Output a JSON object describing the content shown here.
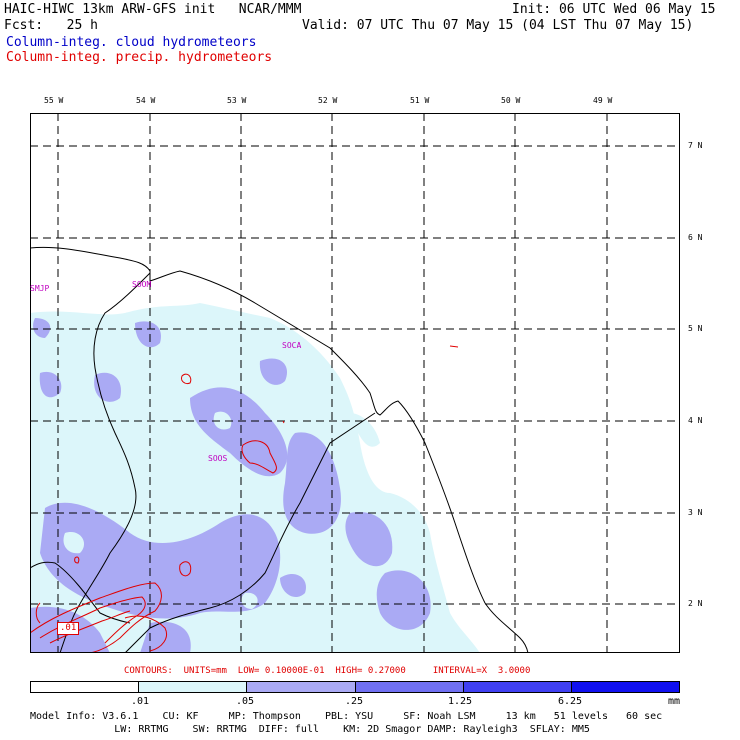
{
  "header": {
    "title": "HAIC-HIWC 13km ARW-GFS init   NCAR/MMM",
    "init": "Init: 06 UTC Wed 06 May 15",
    "fcst": "Fcst:   25 h",
    "valid": "Valid: 07 UTC Thu 07 May 15 (04 LST Thu 07 May 15)",
    "field1": "Column-integ. cloud hydrometeors",
    "field2": "Column-integ. precip. hydrometeors"
  },
  "lon_labels": [
    "55 W",
    "54 W",
    "53 W",
    "52 W",
    "51 W",
    "50 W",
    "49 W"
  ],
  "lat_labels": [
    "7 N",
    "6 N",
    "5 N",
    "4 N",
    "3 N",
    "2 N"
  ],
  "place_labels": [
    "SMJP",
    "SOOM",
    "SOCA",
    "SOOS"
  ],
  "contour_label": ".01",
  "contour_info": "CONTOURS:  UNITS=mm  LOW= 0.10000E-01  HIGH= 0.27000     INTERVAL=X  3.0000",
  "legend": {
    "ticks": [
      ".01",
      ".05",
      ".25",
      "1.25",
      "6.25"
    ],
    "units": "mm",
    "colors": [
      "#ffffff",
      "#dcf6fa",
      "#aaaaf4",
      "#7070f2",
      "#4040f2",
      "#1010f0"
    ]
  },
  "footer": {
    "line1": "Model Info: V3.6.1    CU: KF     MP: Thompson    PBL: YSU     SF: Noah LSM     13 km   51 levels   60 sec",
    "line2": "              LW: RRTMG    SW: RRTMG  DIFF: full    KM: 2D Smagor DAMP: Rayleigh3  SFLAY: MM5"
  }
}
